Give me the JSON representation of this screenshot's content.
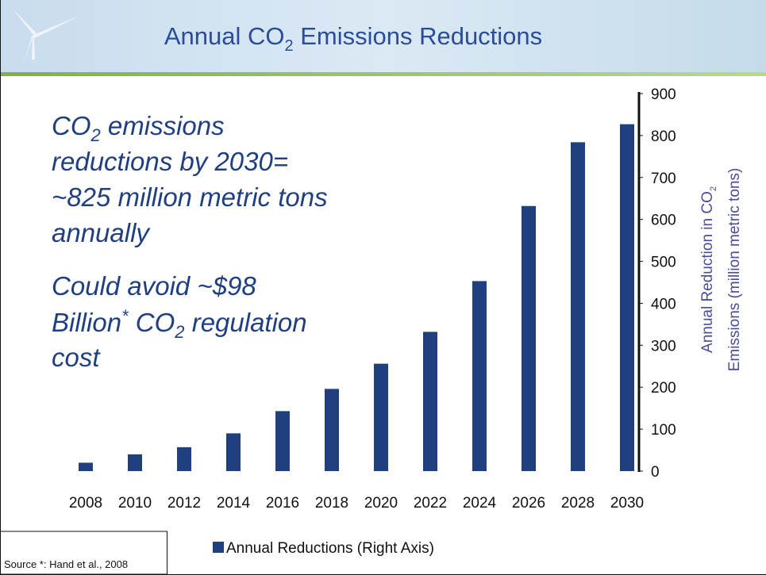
{
  "chart_data": {
    "type": "bar",
    "title": [
      "Annual CO",
      "2",
      " Emissions Reductions"
    ],
    "annotation": [
      [
        "CO",
        "2",
        " emissions"
      ],
      [
        "reductions by 2030="
      ],
      [
        "~825 million metric tons"
      ],
      [
        "annually"
      ],
      [
        "Could avoid ~$98"
      ],
      [
        "Billion",
        "*",
        " CO",
        "2",
        " regulation"
      ],
      [
        "cost"
      ]
    ],
    "y_label": [
      [
        "Annual Reduction in CO",
        "2"
      ],
      [
        "Emissions (million metric tons)"
      ]
    ],
    "categories": [
      "2008",
      "2010",
      "2012",
      "2014",
      "2016",
      "2018",
      "2020",
      "2022",
      "2024",
      "2026",
      "2028",
      "2030"
    ],
    "series": [
      {
        "name": "Annual Reductions (Right Axis)",
        "color": "#1f3f7f",
        "axis": "y2",
        "values": [
          20,
          40,
          57,
          90,
          143,
          196,
          256,
          332,
          453,
          632,
          784,
          827
        ]
      }
    ],
    "y2lim": [
      0,
      900
    ],
    "y2ticks": [
      0,
      100,
      200,
      300,
      400,
      500,
      600,
      700,
      800,
      900
    ],
    "grid": false,
    "source": "Source *: Hand et al., 2008"
  }
}
